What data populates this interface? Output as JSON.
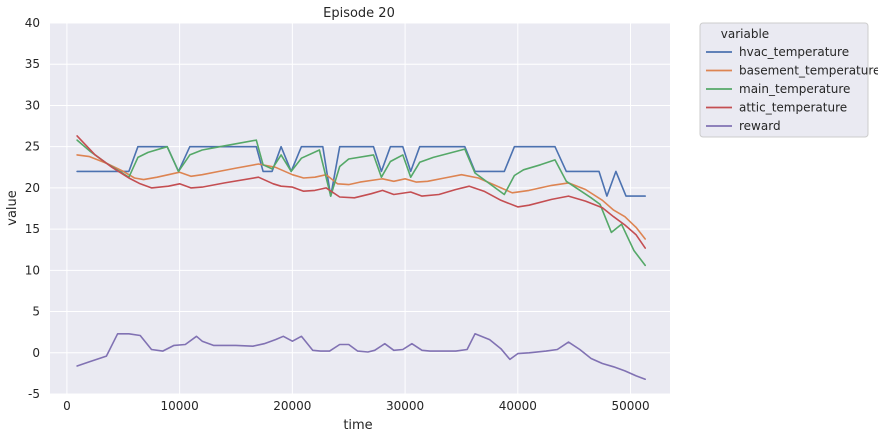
{
  "chart_data": {
    "type": "line",
    "title": "Episode 20",
    "xlabel": "time",
    "ylabel": "value",
    "xlim": [
      -1500,
      53500
    ],
    "ylim": [
      -5,
      40
    ],
    "xticks": [
      0,
      10000,
      20000,
      30000,
      40000,
      50000
    ],
    "yticks": [
      -5,
      0,
      5,
      10,
      15,
      20,
      25,
      30,
      35,
      40
    ],
    "grid": true,
    "legend": {
      "title": "variable",
      "placement": "outside-top-right"
    },
    "series": [
      {
        "name": "hvac_temperature",
        "color": "#4c72b0",
        "x": [
          900,
          5500,
          6300,
          8900,
          9900,
          10900,
          16800,
          17400,
          18200,
          19000,
          19900,
          20800,
          22700,
          23400,
          24200,
          27200,
          27900,
          28700,
          29800,
          30500,
          31300,
          35300,
          36200,
          38800,
          39700,
          43300,
          44300,
          47200,
          47900,
          48700,
          49600,
          51300
        ],
        "y": [
          22,
          22,
          25,
          25,
          22,
          25,
          25,
          22,
          22,
          25,
          22,
          25,
          25,
          19,
          25,
          25,
          22,
          25,
          25,
          22,
          25,
          25,
          22,
          22,
          25,
          25,
          22,
          22,
          19,
          22,
          19,
          19
        ]
      },
      {
        "name": "basement_temperature",
        "color": "#dd8452",
        "x": [
          900,
          2000,
          3500,
          5000,
          6000,
          6800,
          8000,
          9000,
          10000,
          11000,
          12000,
          13500,
          15000,
          17000,
          18500,
          20000,
          21000,
          22000,
          23000,
          24000,
          25000,
          26000,
          28000,
          29000,
          30000,
          31000,
          32000,
          33500,
          35000,
          36500,
          38000,
          39500,
          41000,
          43000,
          44500,
          46000,
          47500,
          48500,
          49500,
          50500,
          51300
        ],
        "y": [
          24,
          23.8,
          23,
          22,
          21.2,
          21,
          21.3,
          21.6,
          21.9,
          21.4,
          21.6,
          22,
          22.4,
          22.9,
          22.5,
          21.6,
          21.2,
          21.3,
          21.6,
          20.5,
          20.4,
          20.7,
          21.1,
          20.8,
          21.1,
          20.7,
          20.8,
          21.2,
          21.6,
          21.2,
          20.3,
          19.4,
          19.7,
          20.3,
          20.6,
          19.8,
          18.5,
          17.3,
          16.5,
          15.2,
          13.8
        ]
      },
      {
        "name": "main_temperature",
        "color": "#55a868",
        "x": [
          900,
          2000,
          3500,
          5500,
          6300,
          7200,
          8900,
          9900,
          10900,
          12000,
          14000,
          16800,
          17400,
          18200,
          19000,
          19900,
          20800,
          22400,
          23400,
          24200,
          25000,
          27200,
          27900,
          28700,
          29800,
          30500,
          31300,
          32500,
          35300,
          36200,
          38800,
          39700,
          40500,
          42000,
          43300,
          44300,
          46500,
          47300,
          48300,
          49200,
          50300,
          51300
        ],
        "y": [
          25.8,
          24.5,
          23,
          21.3,
          23.7,
          24.3,
          25,
          22,
          24,
          24.6,
          25.1,
          25.8,
          22.8,
          22.3,
          24,
          22,
          23.6,
          24.6,
          19,
          22.6,
          23.5,
          24,
          21.3,
          23.2,
          24,
          21.3,
          23.1,
          23.7,
          24.7,
          21.8,
          19.2,
          21.5,
          22.2,
          22.8,
          23.4,
          20.8,
          18.8,
          18,
          14.6,
          15.6,
          12.4,
          10.6
        ]
      },
      {
        "name": "attic_temperature",
        "color": "#c44e52",
        "x": [
          900,
          2500,
          4000,
          5500,
          6500,
          7500,
          9000,
          10000,
          11000,
          12000,
          14000,
          17000,
          18300,
          19000,
          20000,
          21000,
          22000,
          23000,
          24200,
          25500,
          27000,
          28000,
          29000,
          30500,
          31500,
          33000,
          34500,
          35700,
          37000,
          38500,
          40000,
          41000,
          43000,
          44500,
          46000,
          47500,
          48500,
          49500,
          50500,
          51300
        ],
        "y": [
          26.3,
          24,
          22.5,
          21.2,
          20.5,
          20,
          20.2,
          20.5,
          20,
          20.1,
          20.6,
          21.3,
          20.5,
          20.2,
          20.1,
          19.6,
          19.7,
          20,
          18.9,
          18.8,
          19.3,
          19.7,
          19.2,
          19.5,
          19,
          19.2,
          19.8,
          20.2,
          19.6,
          18.5,
          17.7,
          17.9,
          18.6,
          19,
          18.4,
          17.6,
          16.5,
          15.5,
          14.3,
          12.7
        ]
      },
      {
        "name": "reward",
        "color": "#8172b3",
        "x": [
          900,
          2000,
          3500,
          4500,
          5500,
          6500,
          7500,
          8500,
          9500,
          10500,
          11500,
          12000,
          13000,
          15000,
          16500,
          17500,
          18500,
          19200,
          20000,
          20800,
          21800,
          22500,
          23300,
          24200,
          25000,
          25800,
          26700,
          27300,
          28200,
          29000,
          29800,
          30600,
          31500,
          32200,
          33000,
          34500,
          35500,
          36200,
          37500,
          38500,
          39300,
          40000,
          41000,
          42500,
          43500,
          44500,
          45500,
          46500,
          47500,
          48500,
          49500,
          50500,
          51300
        ],
        "y": [
          -1.6,
          -1.1,
          -0.4,
          2.3,
          2.3,
          2.1,
          0.4,
          0.2,
          0.9,
          1.0,
          2.0,
          1.4,
          0.9,
          0.9,
          0.8,
          1.1,
          1.6,
          2.0,
          1.4,
          2.0,
          0.3,
          0.2,
          0.2,
          1.0,
          1.0,
          0.2,
          0.1,
          0.3,
          1.1,
          0.3,
          0.4,
          1.1,
          0.3,
          0.2,
          0.2,
          0.2,
          0.4,
          2.3,
          1.6,
          0.5,
          -0.8,
          -0.1,
          0.0,
          0.2,
          0.4,
          1.3,
          0.4,
          -0.7,
          -1.3,
          -1.7,
          -2.2,
          -2.8,
          -3.2
        ]
      }
    ]
  }
}
